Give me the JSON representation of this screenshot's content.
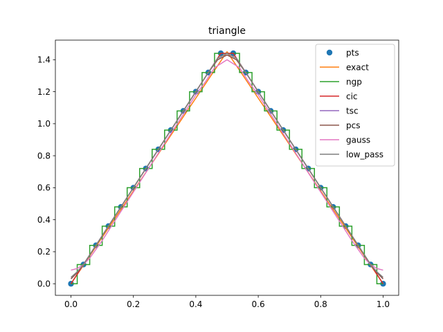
{
  "chart_data": {
    "type": "line",
    "title": "triangle",
    "xlabel": "",
    "ylabel": "",
    "xlim": [
      -0.05,
      1.05
    ],
    "ylim": [
      -0.0725,
      1.5225
    ],
    "xticks": [
      0.0,
      0.2,
      0.4,
      0.6,
      0.8,
      1.0
    ],
    "xtick_labels": [
      "0.0",
      "0.2",
      "0.4",
      "0.6",
      "0.8",
      "1.0"
    ],
    "yticks": [
      0.0,
      0.2,
      0.4,
      0.6,
      0.8,
      1.0,
      1.2,
      1.4
    ],
    "ytick_labels": [
      "0.0",
      "0.2",
      "0.4",
      "0.6",
      "0.8",
      "1.0",
      "1.2",
      "1.4"
    ],
    "grid": false,
    "legend_position": "upper right",
    "series": [
      {
        "name": "pts",
        "kind": "markers",
        "color": "#1f77b4",
        "x": [
          0.0,
          0.04,
          0.08,
          0.12,
          0.16,
          0.2,
          0.24,
          0.28,
          0.32,
          0.36,
          0.4,
          0.44,
          0.48,
          0.52,
          0.56,
          0.6,
          0.64,
          0.68,
          0.72,
          0.76,
          0.8,
          0.84,
          0.88,
          0.92,
          0.96,
          1.0
        ],
        "y": [
          0.0,
          0.12,
          0.24,
          0.36,
          0.48,
          0.6,
          0.72,
          0.84,
          0.96,
          1.08,
          1.2,
          1.32,
          1.44,
          1.44,
          1.32,
          1.2,
          1.08,
          0.96,
          0.84,
          0.72,
          0.6,
          0.48,
          0.36,
          0.24,
          0.12,
          0.0
        ]
      },
      {
        "name": "exact",
        "kind": "line",
        "color": "#ff7f0e",
        "x": [
          0.0,
          0.5,
          1.0
        ],
        "y": [
          0.0,
          1.45,
          0.0
        ]
      },
      {
        "name": "ngp",
        "kind": "step",
        "color": "#2ca02c",
        "x": [
          0.0,
          0.04,
          0.08,
          0.12,
          0.16,
          0.2,
          0.24,
          0.28,
          0.32,
          0.36,
          0.4,
          0.44,
          0.48,
          0.52,
          0.56,
          0.6,
          0.64,
          0.68,
          0.72,
          0.76,
          0.8,
          0.84,
          0.88,
          0.92,
          0.96,
          1.0
        ],
        "y": [
          0.0,
          0.12,
          0.24,
          0.36,
          0.48,
          0.6,
          0.72,
          0.84,
          0.96,
          1.08,
          1.2,
          1.32,
          1.44,
          1.44,
          1.32,
          1.2,
          1.08,
          0.96,
          0.84,
          0.72,
          0.6,
          0.48,
          0.36,
          0.24,
          0.12,
          0.0
        ]
      },
      {
        "name": "cic",
        "kind": "line",
        "color": "#d62728",
        "x": [
          0.0,
          0.48,
          0.52,
          1.0
        ],
        "y": [
          0.0,
          1.44,
          1.44,
          0.0
        ]
      },
      {
        "name": "tsc",
        "kind": "line",
        "color": "#9467bd",
        "x": [
          0.0,
          0.02,
          0.04,
          0.44,
          0.47,
          0.5,
          0.53,
          0.56,
          0.96,
          0.98,
          1.0
        ],
        "y": [
          0.03,
          0.07,
          0.12,
          1.32,
          1.4,
          1.43,
          1.4,
          1.32,
          0.12,
          0.07,
          0.03
        ]
      },
      {
        "name": "pcs",
        "kind": "line",
        "color": "#8c564b",
        "x": [
          0.0,
          0.02,
          0.04,
          0.44,
          0.47,
          0.5,
          0.53,
          0.56,
          0.96,
          0.98,
          1.0
        ],
        "y": [
          0.03,
          0.07,
          0.12,
          1.32,
          1.4,
          1.43,
          1.4,
          1.32,
          0.12,
          0.07,
          0.03
        ]
      },
      {
        "name": "gauss",
        "kind": "line",
        "color": "#e377c2",
        "x": [
          0.0,
          0.02,
          0.04,
          0.06,
          0.1,
          0.4,
          0.43,
          0.46,
          0.5,
          0.54,
          0.57,
          0.6,
          0.9,
          0.94,
          0.96,
          0.98,
          1.0
        ],
        "y": [
          0.085,
          0.095,
          0.12,
          0.16,
          0.27,
          1.18,
          1.26,
          1.35,
          1.4,
          1.35,
          1.26,
          1.18,
          0.27,
          0.16,
          0.12,
          0.095,
          0.085
        ]
      },
      {
        "name": "low_pass",
        "kind": "line",
        "color": "#7f7f7f",
        "x": [
          0.0,
          0.02,
          0.04,
          0.44,
          0.47,
          0.5,
          0.53,
          0.56,
          0.96,
          0.98,
          1.0
        ],
        "y": [
          0.04,
          0.075,
          0.12,
          1.32,
          1.41,
          1.44,
          1.41,
          1.32,
          0.12,
          0.075,
          0.04
        ]
      }
    ]
  }
}
